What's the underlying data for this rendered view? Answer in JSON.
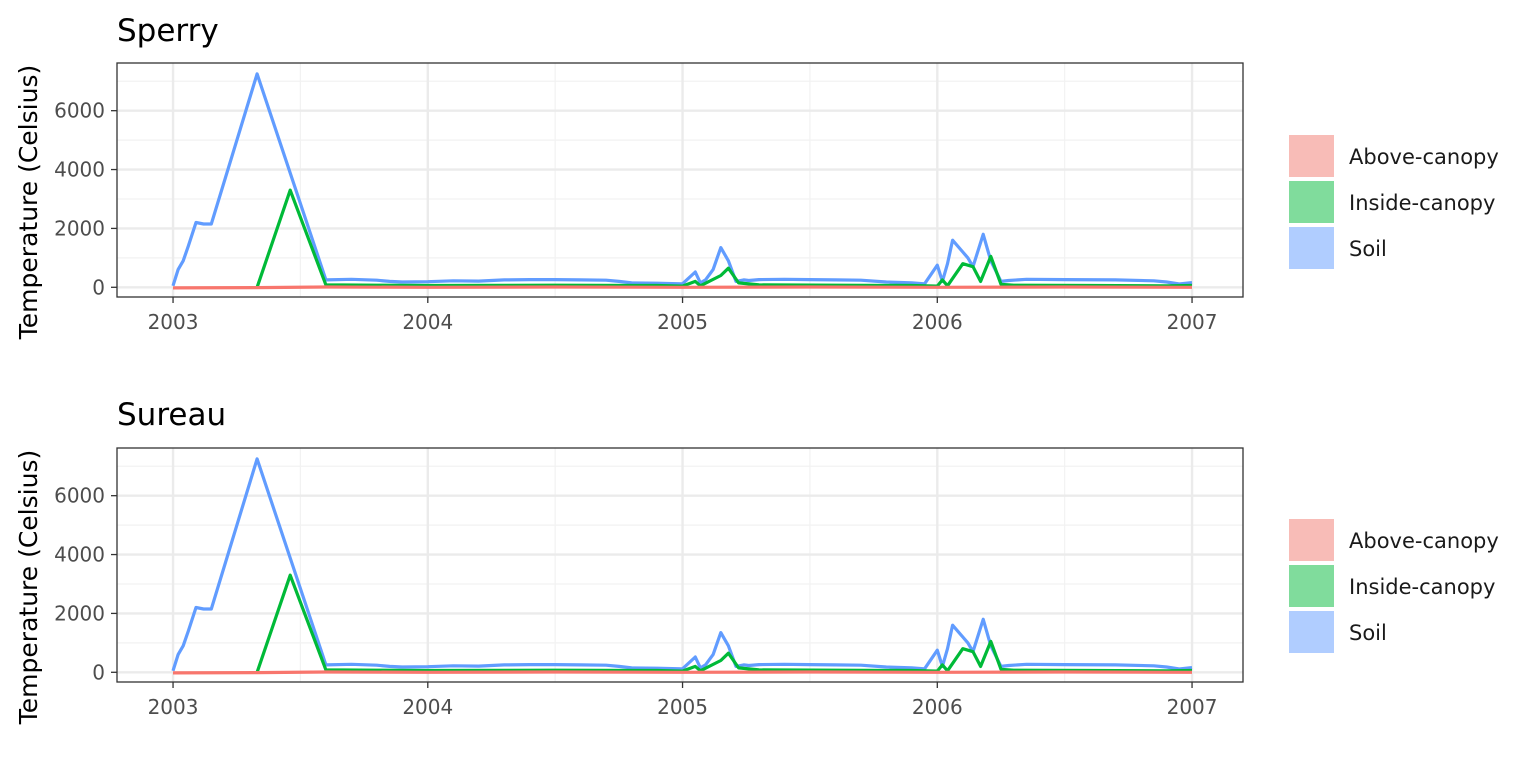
{
  "chart_data": [
    {
      "type": "line",
      "title": "Sperry",
      "ylabel": "Temperature (Celsius)",
      "xlabel": "",
      "xlim": [
        2002.78,
        2007.2
      ],
      "ylim": [
        -330,
        7620
      ],
      "x_ticks": [
        "2003",
        "2004",
        "2005",
        "2006",
        "2007"
      ],
      "y_ticks": [
        "0",
        "2000",
        "4000",
        "6000"
      ],
      "grid": true,
      "legend_position": "right",
      "colors": {
        "Above-canopy": "#F8766D",
        "Inside-canopy": "#00BA38",
        "Soil": "#619CFF"
      },
      "legend": [
        "Above-canopy",
        "Inside-canopy",
        "Soil"
      ],
      "series": [
        {
          "name": "Soil",
          "x": [
            2003.0,
            2003.02,
            2003.04,
            2003.06,
            2003.09,
            2003.12,
            2003.15,
            2003.33,
            2003.6,
            2003.7,
            2003.8,
            2003.85,
            2003.9,
            2004.0,
            2004.1,
            2004.2,
            2004.3,
            2004.4,
            2004.5,
            2004.6,
            2004.7,
            2004.75,
            2004.8,
            2004.9,
            2005.0,
            2005.05,
            2005.07,
            2005.09,
            2005.12,
            2005.15,
            2005.18,
            2005.21,
            2005.24,
            2005.26,
            2005.3,
            2005.4,
            2005.5,
            2005.6,
            2005.7,
            2005.8,
            2005.9,
            2005.95,
            2006.0,
            2006.02,
            2006.04,
            2006.06,
            2006.1,
            2006.12,
            2006.14,
            2006.18,
            2006.21,
            2006.25,
            2006.28,
            2006.35,
            2006.5,
            2006.7,
            2006.85,
            2006.9,
            2006.95,
            2007.0
          ],
          "y": [
            50,
            600,
            900,
            1400,
            2200,
            2150,
            2150,
            7250,
            250,
            270,
            240,
            200,
            180,
            190,
            220,
            210,
            250,
            260,
            260,
            250,
            240,
            200,
            150,
            140,
            120,
            520,
            150,
            250,
            600,
            1350,
            900,
            200,
            250,
            230,
            260,
            270,
            260,
            250,
            240,
            180,
            150,
            120,
            750,
            200,
            800,
            1600,
            1200,
            1000,
            700,
            1800,
            900,
            200,
            230,
            270,
            260,
            250,
            220,
            180,
            110,
            160
          ]
        },
        {
          "name": "Inside-canopy",
          "x": [
            2003.33,
            2003.46,
            2003.6,
            2003.8,
            2004.0,
            2004.5,
            2004.9,
            2005.0,
            2005.05,
            2005.07,
            2005.15,
            2005.18,
            2005.22,
            2005.3,
            2005.6,
            2005.9,
            2006.0,
            2006.02,
            2006.04,
            2006.1,
            2006.14,
            2006.17,
            2006.21,
            2006.25,
            2006.3,
            2006.6,
            2006.9,
            2007.0
          ],
          "y": [
            0,
            3300,
            80,
            70,
            60,
            70,
            60,
            40,
            200,
            50,
            400,
            650,
            150,
            80,
            70,
            60,
            40,
            250,
            50,
            800,
            700,
            200,
            1050,
            100,
            70,
            60,
            50,
            60
          ]
        },
        {
          "name": "Above-canopy",
          "x": [
            2003.0,
            2003.33,
            2003.6,
            2004.0,
            2004.5,
            2005.0,
            2005.5,
            2006.0,
            2006.5,
            2007.0
          ],
          "y": [
            -20,
            -10,
            10,
            0,
            10,
            0,
            10,
            0,
            10,
            0
          ]
        }
      ]
    },
    {
      "type": "line",
      "title": "Sureau",
      "ylabel": "Temperature (Celsius)",
      "xlabel": "",
      "xlim": [
        2002.78,
        2007.2
      ],
      "ylim": [
        -330,
        7620
      ],
      "x_ticks": [
        "2003",
        "2004",
        "2005",
        "2006",
        "2007"
      ],
      "y_ticks": [
        "0",
        "2000",
        "4000",
        "6000"
      ],
      "grid": true,
      "legend_position": "right",
      "colors": {
        "Above-canopy": "#F8766D",
        "Inside-canopy": "#00BA38",
        "Soil": "#619CFF"
      },
      "legend": [
        "Above-canopy",
        "Inside-canopy",
        "Soil"
      ],
      "series": [
        {
          "name": "Soil",
          "x": [
            2003.0,
            2003.02,
            2003.04,
            2003.06,
            2003.09,
            2003.12,
            2003.15,
            2003.33,
            2003.6,
            2003.7,
            2003.8,
            2003.85,
            2003.9,
            2004.0,
            2004.1,
            2004.2,
            2004.3,
            2004.4,
            2004.5,
            2004.6,
            2004.7,
            2004.75,
            2004.8,
            2004.9,
            2005.0,
            2005.05,
            2005.07,
            2005.09,
            2005.12,
            2005.15,
            2005.18,
            2005.21,
            2005.24,
            2005.26,
            2005.3,
            2005.4,
            2005.5,
            2005.6,
            2005.7,
            2005.8,
            2005.9,
            2005.95,
            2006.0,
            2006.02,
            2006.04,
            2006.06,
            2006.1,
            2006.12,
            2006.14,
            2006.18,
            2006.21,
            2006.25,
            2006.28,
            2006.35,
            2006.5,
            2006.7,
            2006.85,
            2006.9,
            2006.95,
            2007.0
          ],
          "y": [
            50,
            600,
            900,
            1400,
            2200,
            2150,
            2150,
            7250,
            250,
            270,
            240,
            200,
            180,
            190,
            220,
            210,
            250,
            260,
            260,
            250,
            240,
            200,
            150,
            140,
            120,
            520,
            150,
            250,
            600,
            1350,
            900,
            200,
            250,
            230,
            260,
            270,
            260,
            250,
            240,
            180,
            150,
            120,
            750,
            200,
            800,
            1600,
            1200,
            1000,
            700,
            1800,
            900,
            200,
            230,
            270,
            260,
            250,
            220,
            180,
            110,
            160
          ]
        },
        {
          "name": "Inside-canopy",
          "x": [
            2003.33,
            2003.46,
            2003.6,
            2003.8,
            2004.0,
            2004.5,
            2004.9,
            2005.0,
            2005.05,
            2005.07,
            2005.15,
            2005.18,
            2005.22,
            2005.3,
            2005.6,
            2005.9,
            2006.0,
            2006.02,
            2006.04,
            2006.1,
            2006.14,
            2006.17,
            2006.21,
            2006.25,
            2006.3,
            2006.6,
            2006.9,
            2007.0
          ],
          "y": [
            0,
            3300,
            80,
            70,
            60,
            70,
            60,
            40,
            200,
            50,
            400,
            650,
            150,
            80,
            70,
            60,
            40,
            250,
            50,
            800,
            700,
            200,
            1050,
            100,
            70,
            60,
            50,
            60
          ]
        },
        {
          "name": "Above-canopy",
          "x": [
            2003.0,
            2003.33,
            2003.6,
            2004.0,
            2004.5,
            2005.0,
            2005.5,
            2006.0,
            2006.5,
            2007.0
          ],
          "y": [
            -20,
            -10,
            10,
            0,
            10,
            0,
            10,
            0,
            10,
            0
          ]
        }
      ]
    }
  ]
}
